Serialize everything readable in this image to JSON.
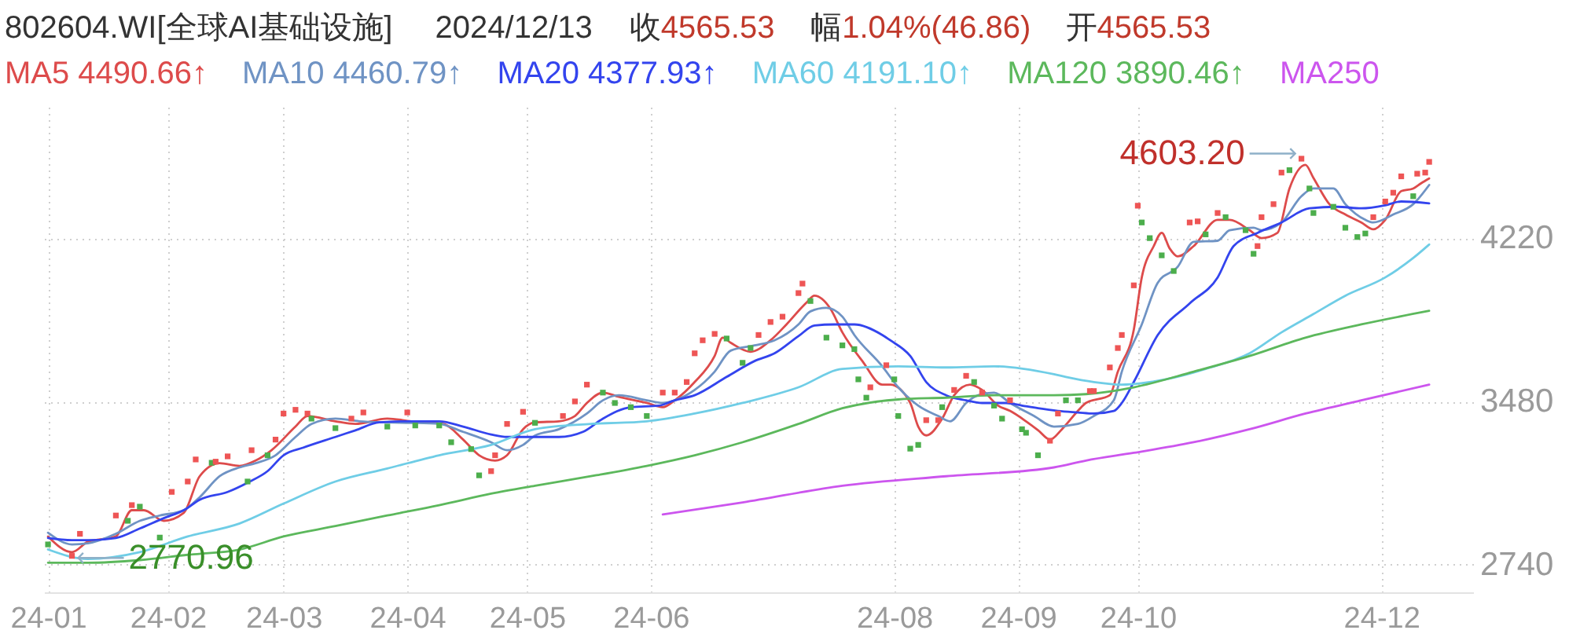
{
  "chart_data": {
    "type": "line",
    "title": "802604.WI[全球AI基础设施]",
    "subtitle": "2024/12/13",
    "annotations": [
      "收4565.53",
      "幅1.04%(46.86)",
      "开4565.53",
      {
        "text": "4603.20",
        "x": "2024-11-11",
        "y": 4603.2
      },
      {
        "text": "2770.96",
        "x": "2024-01-08",
        "y": 2770.96
      }
    ],
    "xlim": [
      "2024-01-01",
      "2024-12-24"
    ],
    "xticks": [
      {
        "value": "2024-01-02",
        "label": "24-01"
      },
      {
        "value": "2024-02-01",
        "label": "24-02"
      },
      {
        "value": "2024-03-01",
        "label": "24-03"
      },
      {
        "value": "2024-04-01",
        "label": "24-04"
      },
      {
        "value": "2024-05-01",
        "label": "24-05"
      },
      {
        "value": "2024-06-01",
        "label": "24-06"
      },
      {
        "value": "2024-08-01",
        "label": "24-08"
      },
      {
        "value": "2024-09-01",
        "label": "24-09"
      },
      {
        "value": "2024-10-01",
        "label": "24-10"
      },
      {
        "value": "2024-12-01",
        "label": "24-12"
      }
    ],
    "ylim": [
      2615,
      4815
    ],
    "yticks": [
      2740,
      3480,
      4220
    ],
    "grid": true,
    "legend": "top left",
    "marker": "none",
    "line_style": "solid",
    "series": [
      {
        "name": "MA5 4490.66↑",
        "color": "#dd4b4b",
        "x": [
          "2024-01-02",
          "2024-01-08",
          "2024-01-12",
          "2024-01-19",
          "2024-01-23",
          "2024-01-26",
          "2024-01-31",
          "2024-02-05",
          "2024-02-09",
          "2024-02-14",
          "2024-02-19",
          "2024-02-23",
          "2024-02-27",
          "2024-03-04",
          "2024-03-07",
          "2024-03-14",
          "2024-03-19",
          "2024-03-27",
          "2024-04-02",
          "2024-04-10",
          "2024-04-15",
          "2024-04-19",
          "2024-04-23",
          "2024-04-26",
          "2024-04-30",
          "2024-05-03",
          "2024-05-09",
          "2024-05-13",
          "2024-05-16",
          "2024-05-20",
          "2024-05-24",
          "2024-05-31",
          "2024-06-04",
          "2024-06-07",
          "2024-06-12",
          "2024-06-17",
          "2024-06-19",
          "2024-06-21",
          "2024-06-26",
          "2024-07-01",
          "2024-07-05",
          "2024-07-10",
          "2024-07-12",
          "2024-07-16",
          "2024-07-19",
          "2024-07-24",
          "2024-07-29",
          "2024-07-31",
          "2024-08-05",
          "2024-08-07",
          "2024-08-09",
          "2024-08-13",
          "2024-08-16",
          "2024-08-20",
          "2024-08-23",
          "2024-08-27",
          "2024-08-30",
          "2024-09-03",
          "2024-09-06",
          "2024-09-09",
          "2024-09-12",
          "2024-09-16",
          "2024-09-18",
          "2024-09-24",
          "2024-09-26",
          "2024-09-30",
          "2024-10-02",
          "2024-10-05",
          "2024-10-07",
          "2024-10-09",
          "2024-10-11",
          "2024-10-15",
          "2024-10-21",
          "2024-10-24",
          "2024-10-29",
          "2024-11-01",
          "2024-11-05",
          "2024-11-08",
          "2024-11-12",
          "2024-11-14",
          "2024-11-18",
          "2024-11-22",
          "2024-11-26",
          "2024-11-29",
          "2024-12-02",
          "2024-12-06",
          "2024-12-09",
          "2024-12-11",
          "2024-12-13"
        ],
        "values": [
          2868,
          2797,
          2844,
          2868,
          2987,
          2987,
          2939,
          2975,
          3141,
          3200,
          3188,
          3212,
          3259,
          3366,
          3414,
          3390,
          3378,
          3402,
          3390,
          3378,
          3307,
          3236,
          3212,
          3236,
          3354,
          3385,
          3390,
          3414,
          3473,
          3520,
          3501,
          3473,
          3454,
          3485,
          3568,
          3686,
          3769,
          3746,
          3705,
          3757,
          3829,
          3928,
          3959,
          3900,
          3793,
          3663,
          3556,
          3556,
          3473,
          3366,
          3326,
          3402,
          3508,
          3556,
          3532,
          3461,
          3437,
          3390,
          3350,
          3307,
          3354,
          3437,
          3473,
          3508,
          3615,
          3805,
          4042,
          4184,
          4244,
          4173,
          4137,
          4184,
          4303,
          4303,
          4256,
          4220,
          4244,
          4445,
          4552,
          4493,
          4374,
          4327,
          4291,
          4260,
          4303,
          4433,
          4445,
          4469,
          4490.66
        ]
      },
      {
        "name": "MA10 4460.79↑",
        "color": "#6f93c4",
        "x": [
          "2024-01-02",
          "2024-01-08",
          "2024-01-12",
          "2024-01-19",
          "2024-01-25",
          "2024-01-30",
          "2024-02-05",
          "2024-02-09",
          "2024-02-14",
          "2024-02-19",
          "2024-02-23",
          "2024-02-28",
          "2024-03-04",
          "2024-03-08",
          "2024-03-14",
          "2024-03-20",
          "2024-03-27",
          "2024-04-02",
          "2024-04-09",
          "2024-04-15",
          "2024-04-22",
          "2024-04-26",
          "2024-04-30",
          "2024-05-03",
          "2024-05-09",
          "2024-05-16",
          "2024-05-20",
          "2024-05-24",
          "2024-05-31",
          "2024-06-04",
          "2024-06-07",
          "2024-06-12",
          "2024-06-17",
          "2024-06-21",
          "2024-06-27",
          "2024-07-02",
          "2024-07-08",
          "2024-07-11",
          "2024-07-15",
          "2024-07-19",
          "2024-07-22",
          "2024-07-29",
          "2024-08-02",
          "2024-08-07",
          "2024-08-12",
          "2024-08-15",
          "2024-08-19",
          "2024-08-22",
          "2024-08-26",
          "2024-08-30",
          "2024-09-05",
          "2024-09-10",
          "2024-09-16",
          "2024-09-20",
          "2024-09-25",
          "2024-09-27",
          "2024-10-02",
          "2024-10-06",
          "2024-10-11",
          "2024-10-15",
          "2024-10-21",
          "2024-10-24",
          "2024-10-30",
          "2024-11-01",
          "2024-11-06",
          "2024-11-11",
          "2024-11-14",
          "2024-11-19",
          "2024-11-22",
          "2024-11-27",
          "2024-11-29",
          "2024-12-04",
          "2024-12-09",
          "2024-12-13"
        ],
        "values": [
          2885,
          2832,
          2837,
          2880,
          2939,
          2963,
          2987,
          3046,
          3141,
          3181,
          3200,
          3236,
          3319,
          3378,
          3402,
          3390,
          3385,
          3383,
          3378,
          3342,
          3295,
          3259,
          3283,
          3325,
          3354,
          3425,
          3485,
          3508,
          3485,
          3473,
          3485,
          3532,
          3615,
          3710,
          3734,
          3757,
          3829,
          3888,
          3904,
          3864,
          3781,
          3639,
          3544,
          3461,
          3414,
          3390,
          3473,
          3508,
          3520,
          3473,
          3414,
          3366,
          3378,
          3414,
          3485,
          3615,
          3829,
          4018,
          4090,
          4203,
          4208,
          4256,
          4267,
          4256,
          4291,
          4410,
          4445,
          4445,
          4374,
          4303,
          4291,
          4327,
          4374,
          4460.79
        ]
      },
      {
        "name": "MA20 4377.93↑",
        "color": "#3344ee",
        "x": [
          "2024-01-02",
          "2024-01-08",
          "2024-01-12",
          "2024-01-19",
          "2024-01-25",
          "2024-01-31",
          "2024-02-05",
          "2024-02-09",
          "2024-02-16",
          "2024-02-21",
          "2024-02-26",
          "2024-03-01",
          "2024-03-06",
          "2024-03-14",
          "2024-03-19",
          "2024-03-25",
          "2024-04-01",
          "2024-04-09",
          "2024-04-15",
          "2024-04-22",
          "2024-04-26",
          "2024-05-02",
          "2024-05-09",
          "2024-05-15",
          "2024-05-20",
          "2024-05-27",
          "2024-06-03",
          "2024-06-07",
          "2024-06-12",
          "2024-06-20",
          "2024-06-27",
          "2024-07-02",
          "2024-07-08",
          "2024-07-12",
          "2024-07-17",
          "2024-07-22",
          "2024-07-29",
          "2024-07-31",
          "2024-08-05",
          "2024-08-09",
          "2024-08-14",
          "2024-08-19",
          "2024-08-23",
          "2024-08-29",
          "2024-09-02",
          "2024-09-06",
          "2024-09-11",
          "2024-09-16",
          "2024-09-20",
          "2024-09-25",
          "2024-09-27",
          "2024-09-30",
          "2024-10-06",
          "2024-10-14",
          "2024-10-21",
          "2024-10-25",
          "2024-10-31",
          "2024-11-06",
          "2024-11-13",
          "2024-11-20",
          "2024-11-26",
          "2024-12-02",
          "2024-12-06",
          "2024-12-13"
        ],
        "values": [
          2861,
          2851,
          2851,
          2861,
          2904,
          2951,
          2987,
          3034,
          3070,
          3112,
          3164,
          3236,
          3271,
          3319,
          3349,
          3385,
          3390,
          3390,
          3366,
          3330,
          3319,
          3319,
          3319,
          3342,
          3402,
          3454,
          3461,
          3485,
          3508,
          3591,
          3663,
          3698,
          3776,
          3824,
          3829,
          3829,
          3781,
          3757,
          3686,
          3568,
          3508,
          3485,
          3473,
          3473,
          3461,
          3449,
          3437,
          3430,
          3425,
          3437,
          3473,
          3568,
          3781,
          3924,
          4042,
          4184,
          4244,
          4291,
          4355,
          4362,
          4355,
          4369,
          4386,
          4377.93
        ]
      },
      {
        "name": "MA60 4191.10↑",
        "color": "#6fcde6",
        "x": [
          "2024-01-02",
          "2024-01-12",
          "2024-01-25",
          "2024-02-06",
          "2024-02-19",
          "2024-03-01",
          "2024-03-14",
          "2024-03-27",
          "2024-04-09",
          "2024-04-22",
          "2024-05-03",
          "2024-05-17",
          "2024-05-31",
          "2024-06-12",
          "2024-06-24",
          "2024-07-08",
          "2024-07-19",
          "2024-08-02",
          "2024-08-14",
          "2024-08-26",
          "2024-09-10",
          "2024-09-13",
          "2024-09-20",
          "2024-09-27",
          "2024-10-08",
          "2024-10-18",
          "2024-10-29",
          "2024-11-06",
          "2024-11-14",
          "2024-11-22",
          "2024-12-02",
          "2024-12-09",
          "2024-12-13"
        ],
        "values": [
          2809,
          2766,
          2797,
          2868,
          2927,
          3017,
          3117,
          3176,
          3236,
          3283,
          3354,
          3378,
          3390,
          3425,
          3473,
          3544,
          3627,
          3639,
          3634,
          3639,
          3603,
          3591,
          3568,
          3556,
          3580,
          3627,
          3698,
          3793,
          3876,
          3959,
          4042,
          4130,
          4191.1
        ]
      },
      {
        "name": "MA120 3890.46↑",
        "color": "#5cb85c",
        "x": [
          "2024-01-02",
          "2024-01-12",
          "2024-01-25",
          "2024-02-06",
          "2024-02-19",
          "2024-03-01",
          "2024-03-14",
          "2024-03-27",
          "2024-04-09",
          "2024-04-22",
          "2024-05-03",
          "2024-05-17",
          "2024-05-31",
          "2024-06-12",
          "2024-06-24",
          "2024-07-08",
          "2024-07-19",
          "2024-08-02",
          "2024-08-14",
          "2024-08-26",
          "2024-09-10",
          "2024-09-18",
          "2024-09-30",
          "2024-10-15",
          "2024-10-29",
          "2024-11-12",
          "2024-11-26",
          "2024-12-13"
        ],
        "values": [
          2749,
          2749,
          2761,
          2785,
          2809,
          2868,
          2915,
          2963,
          3010,
          3062,
          3098,
          3141,
          3188,
          3236,
          3295,
          3378,
          3449,
          3489,
          3497,
          3508,
          3508,
          3513,
          3544,
          3615,
          3686,
          3769,
          3829,
          3890.46
        ]
      },
      {
        "name": "MA250",
        "color": "#cc55ee",
        "x": [
          "2024-06-04",
          "2024-06-24",
          "2024-07-19",
          "2024-08-14",
          "2024-09-10",
          "2024-09-18",
          "2024-09-30",
          "2024-10-15",
          "2024-10-29",
          "2024-11-12",
          "2024-11-26",
          "2024-12-13"
        ],
        "values": [
          2968,
          3022,
          3098,
          3141,
          3181,
          3212,
          3247,
          3295,
          3354,
          3425,
          3485,
          3556
        ]
      },
      {
        "type": "scatter",
        "marker": "square",
        "x": [
          "2024-01-02",
          "2024-01-08",
          "2024-01-10",
          "2024-01-19",
          "2024-01-22",
          "2024-01-23",
          "2024-01-25",
          "2024-01-30",
          "2024-02-02",
          "2024-02-06",
          "2024-02-08",
          "2024-02-12",
          "2024-02-13",
          "2024-02-16",
          "2024-02-21",
          "2024-02-22",
          "2024-02-26",
          "2024-02-28",
          "2024-03-01",
          "2024-03-04",
          "2024-03-07",
          "2024-03-08",
          "2024-03-14",
          "2024-03-18",
          "2024-03-21",
          "2024-03-27",
          "2024-04-01",
          "2024-04-03",
          "2024-04-09",
          "2024-04-12",
          "2024-04-17",
          "2024-04-19",
          "2024-04-22",
          "2024-04-23",
          "2024-04-26",
          "2024-04-30",
          "2024-05-03",
          "2024-05-10",
          "2024-05-13",
          "2024-05-16",
          "2024-05-20",
          "2024-05-23",
          "2024-05-27",
          "2024-05-31",
          "2024-06-04",
          "2024-06-07",
          "2024-06-10",
          "2024-06-12",
          "2024-06-14",
          "2024-06-17",
          "2024-06-20",
          "2024-06-24",
          "2024-06-26",
          "2024-06-28",
          "2024-07-01",
          "2024-07-04",
          "2024-07-08",
          "2024-07-09",
          "2024-07-11",
          "2024-07-15",
          "2024-07-19",
          "2024-07-22",
          "2024-07-23",
          "2024-07-25",
          "2024-07-26",
          "2024-07-30",
          "2024-08-01",
          "2024-08-02",
          "2024-08-05",
          "2024-08-07",
          "2024-08-09",
          "2024-08-12",
          "2024-08-13",
          "2024-08-16",
          "2024-08-19",
          "2024-08-21",
          "2024-08-23",
          "2024-08-26",
          "2024-08-28",
          "2024-08-30",
          "2024-09-02",
          "2024-09-03",
          "2024-09-06",
          "2024-09-09",
          "2024-09-11",
          "2024-09-13",
          "2024-09-16",
          "2024-09-19",
          "2024-09-20",
          "2024-09-24",
          "2024-09-26",
          "2024-09-27",
          "2024-09-30",
          "2024-10-01",
          "2024-10-02",
          "2024-10-04",
          "2024-10-07",
          "2024-10-10",
          "2024-10-14",
          "2024-10-16",
          "2024-10-18",
          "2024-10-21",
          "2024-10-23",
          "2024-10-28",
          "2024-10-30",
          "2024-10-31",
          "2024-11-01",
          "2024-11-04",
          "2024-11-06",
          "2024-11-08",
          "2024-11-11",
          "2024-11-13",
          "2024-11-14",
          "2024-11-19",
          "2024-11-22",
          "2024-11-25",
          "2024-11-27",
          "2024-11-29",
          "2024-12-02",
          "2024-12-04",
          "2024-12-06",
          "2024-12-09",
          "2024-12-10",
          "2024-12-12",
          "2024-12-13"
        ],
        "values": [
          2832,
          2780,
          2880,
          2963,
          2939,
          3010,
          3003,
          2863,
          3070,
          3117,
          3217,
          3202,
          3207,
          3231,
          3117,
          3259,
          3236,
          3307,
          3425,
          3442,
          3425,
          3402,
          3359,
          3402,
          3430,
          3366,
          3430,
          3371,
          3371,
          3295,
          3264,
          3145,
          3164,
          3236,
          3378,
          3433,
          3383,
          3414,
          3480,
          3556,
          3520,
          3473,
          3454,
          3414,
          3520,
          3520,
          3568,
          3698,
          3757,
          3786,
          3765,
          3655,
          3722,
          3781,
          3840,
          3864,
          3971,
          4014,
          3935,
          3769,
          3734,
          3717,
          3580,
          3497,
          3544,
          3644,
          3580,
          3414,
          3266,
          3283,
          3395,
          3395,
          3454,
          3532,
          3596,
          3568,
          3520,
          3461,
          3402,
          3485,
          3354,
          3338,
          3236,
          3302,
          3425,
          3485,
          3485,
          3527,
          3527,
          3634,
          3722,
          3781,
          4006,
          4367,
          4291,
          4220,
          4142,
          4071,
          4291,
          4296,
          4237,
          4334,
          4315,
          4256,
          4149,
          4184,
          4315,
          4374,
          4517,
          4528,
          4580,
          4445,
          4334,
          4362,
          4267,
          4225,
          4241,
          4315,
          4386,
          4426,
          4500,
          4410,
          4512,
          4517,
          4565.53
        ],
        "colors": [
          "#4cae4c",
          "#ee5555",
          "#ee5555",
          "#ee5555",
          "#4cae4c",
          "#ee5555",
          "#4cae4c",
          "#4cae4c",
          "#ee5555",
          "#ee5555",
          "#ee5555",
          "#4cae4c",
          "#ee5555",
          "#ee5555",
          "#4cae4c",
          "#ee5555",
          "#4cae4c",
          "#ee5555",
          "#ee5555",
          "#ee5555",
          "#ee5555",
          "#4cae4c",
          "#4cae4c",
          "#ee5555",
          "#ee5555",
          "#4cae4c",
          "#ee5555",
          "#4cae4c",
          "#4cae4c",
          "#4cae4c",
          "#4cae4c",
          "#4cae4c",
          "#ee5555",
          "#ee5555",
          "#ee5555",
          "#ee5555",
          "#4cae4c",
          "#ee5555",
          "#ee5555",
          "#ee5555",
          "#4cae4c",
          "#4cae4c",
          "#4cae4c",
          "#4cae4c",
          "#ee5555",
          "#ee5555",
          "#ee5555",
          "#ee5555",
          "#ee5555",
          "#ee5555",
          "#4cae4c",
          "#4cae4c",
          "#4cae4c",
          "#ee5555",
          "#ee5555",
          "#ee5555",
          "#ee5555",
          "#ee5555",
          "#4cae4c",
          "#4cae4c",
          "#4cae4c",
          "#4cae4c",
          "#4cae4c",
          "#4cae4c",
          "#ee5555",
          "#ee5555",
          "#4cae4c",
          "#4cae4c",
          "#4cae4c",
          "#4cae4c",
          "#ee5555",
          "#ee5555",
          "#4cae4c",
          "#ee5555",
          "#ee5555",
          "#4cae4c",
          "#ee5555",
          "#4cae4c",
          "#4cae4c",
          "#ee5555",
          "#4cae4c",
          "#4cae4c",
          "#4cae4c",
          "#ee5555",
          "#ee5555",
          "#4cae4c",
          "#4cae4c",
          "#ee5555",
          "#ee5555",
          "#ee5555",
          "#ee5555",
          "#ee5555",
          "#ee5555",
          "#ee5555",
          "#4cae4c",
          "#4cae4c",
          "#4cae4c",
          "#4cae4c",
          "#ee5555",
          "#ee5555",
          "#4cae4c",
          "#ee5555",
          "#4cae4c",
          "#4cae4c",
          "#4cae4c",
          "#ee5555",
          "#ee5555",
          "#ee5555",
          "#ee5555",
          "#4cae4c",
          "#ee5555",
          "#4cae4c",
          "#4cae4c",
          "#4cae4c",
          "#4cae4c",
          "#4cae4c",
          "#4cae4c",
          "#ee5555",
          "#ee5555",
          "#ee5555",
          "#ee5555",
          "#4cae4c",
          "#ee5555",
          "#ee5555",
          "#ee5555"
        ]
      }
    ]
  }
}
